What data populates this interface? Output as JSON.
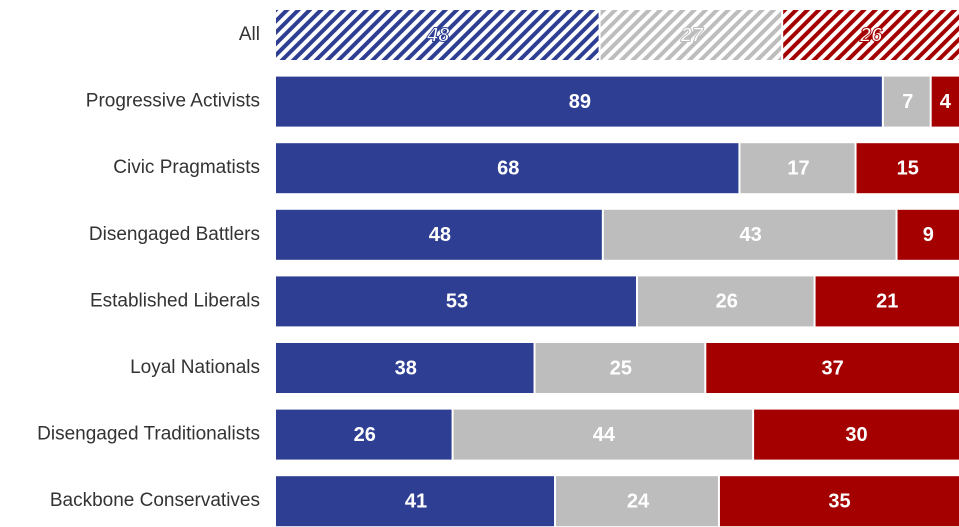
{
  "chart_data": {
    "type": "bar",
    "orientation": "horizontal",
    "stacked": true,
    "normalized_to_100": true,
    "grid": false,
    "legend": "none",
    "title": "",
    "xlabel": "",
    "ylabel": "",
    "xlim": [
      0,
      100
    ],
    "categories": [
      "All",
      "Progressive Activists",
      "Civic Pragmatists",
      "Disengaged Battlers",
      "Established Liberals",
      "Loyal Nationals",
      "Disengaged Traditionalists",
      "Backbone Conservatives"
    ],
    "series": [
      {
        "color": "#2e3f93",
        "values": [
          48,
          89,
          68,
          48,
          53,
          38,
          26,
          41
        ]
      },
      {
        "color": "#bdbdbd",
        "values": [
          27,
          7,
          17,
          43,
          26,
          25,
          44,
          24
        ]
      },
      {
        "color": "#a50000",
        "values": [
          26,
          4,
          15,
          9,
          21,
          37,
          30,
          35
        ]
      }
    ],
    "hatched_rows": [
      "All"
    ]
  }
}
